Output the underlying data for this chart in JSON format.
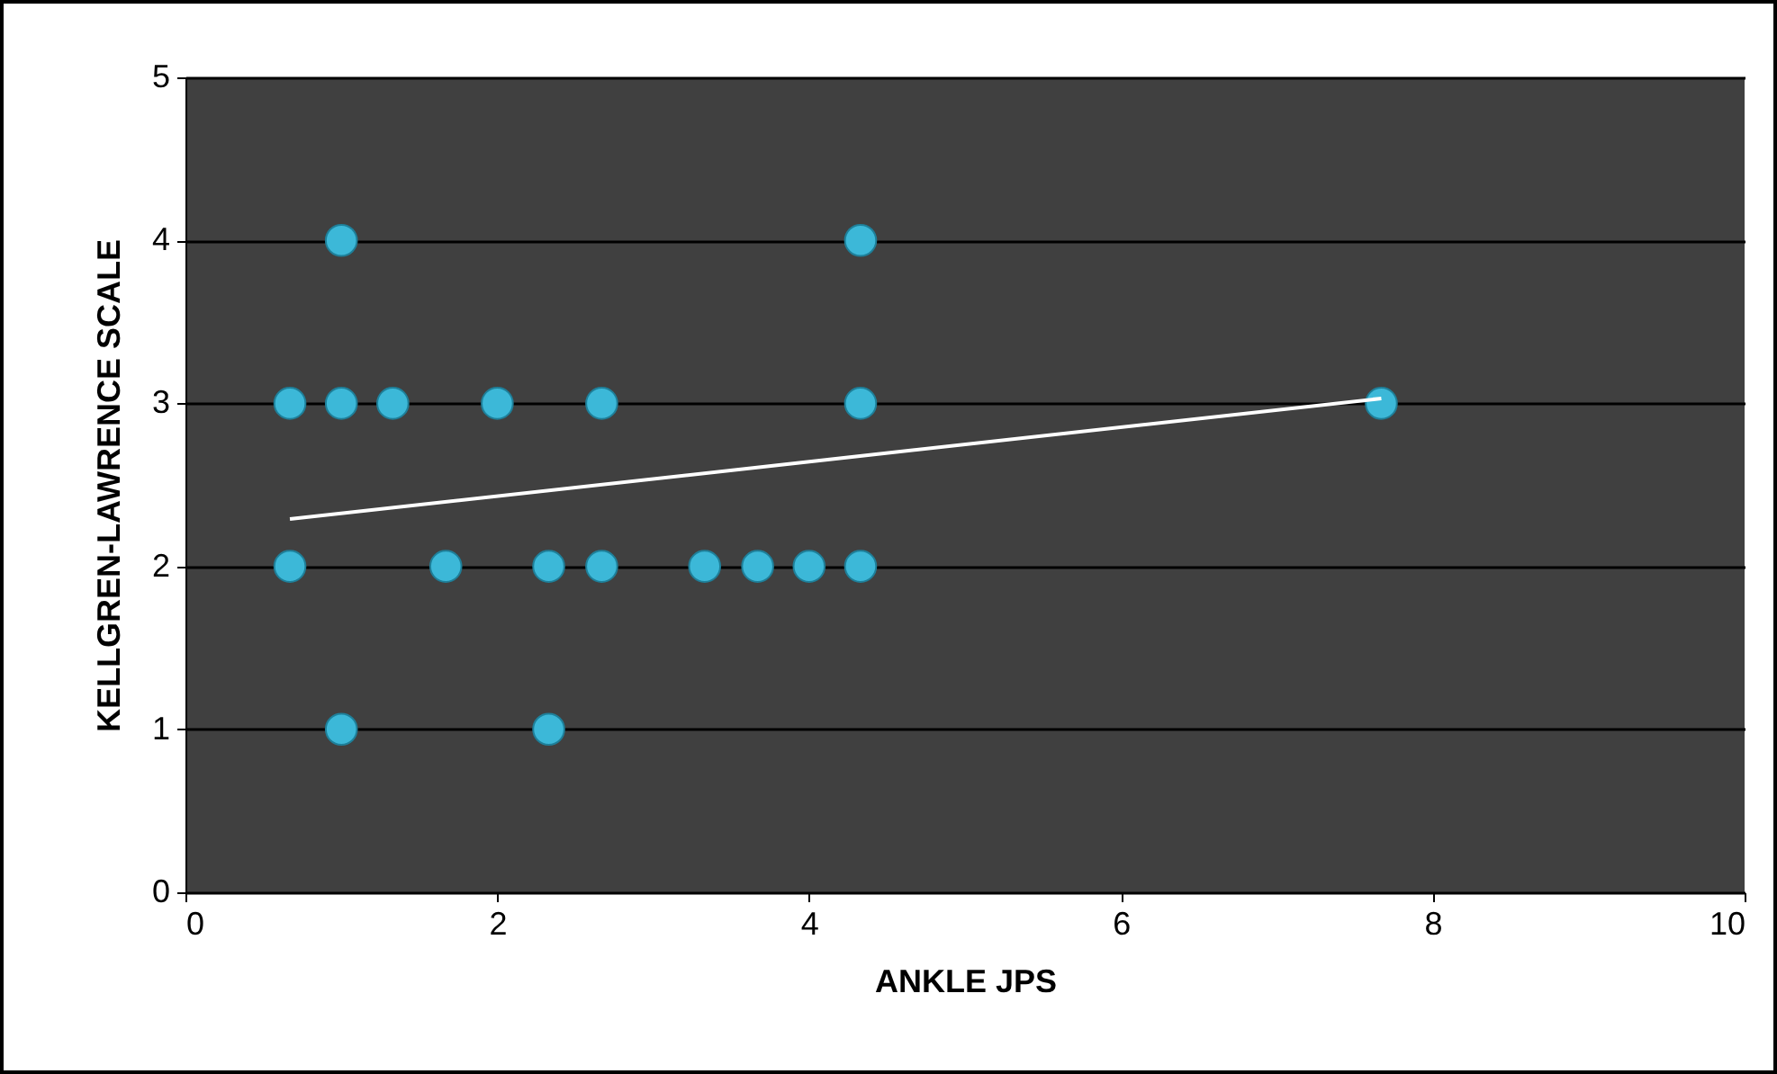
{
  "chart_data": {
    "type": "scatter",
    "xlabel": "ANKLE JPS",
    "ylabel": "KELLGREN-LAWRENCE SCALE",
    "xlim": [
      0,
      10
    ],
    "xticks": [
      0,
      2,
      4,
      6,
      8,
      10
    ],
    "ylim": [
      0,
      5
    ],
    "yticks": [
      0,
      1,
      2,
      3,
      4,
      5
    ],
    "grid": "y",
    "marker": "circle",
    "series": [
      {
        "color": "#3cb8d8",
        "x": [
          1.0,
          4.33,
          0.67,
          1.0,
          1.33,
          2.0,
          2.67,
          4.33,
          7.67,
          0.67,
          1.67,
          2.33,
          2.67,
          3.33,
          3.67,
          4.0,
          4.33,
          1.0,
          2.33
        ],
        "values": [
          4,
          4,
          3,
          3,
          3,
          3,
          3,
          3,
          3,
          2,
          2,
          2,
          2,
          2,
          2,
          2,
          2,
          1,
          1
        ]
      },
      {
        "type": "line",
        "marker": "none",
        "color": "#ffffff",
        "x": [
          0.67,
          7.67
        ],
        "values": [
          2.29,
          3.03
        ]
      }
    ]
  }
}
